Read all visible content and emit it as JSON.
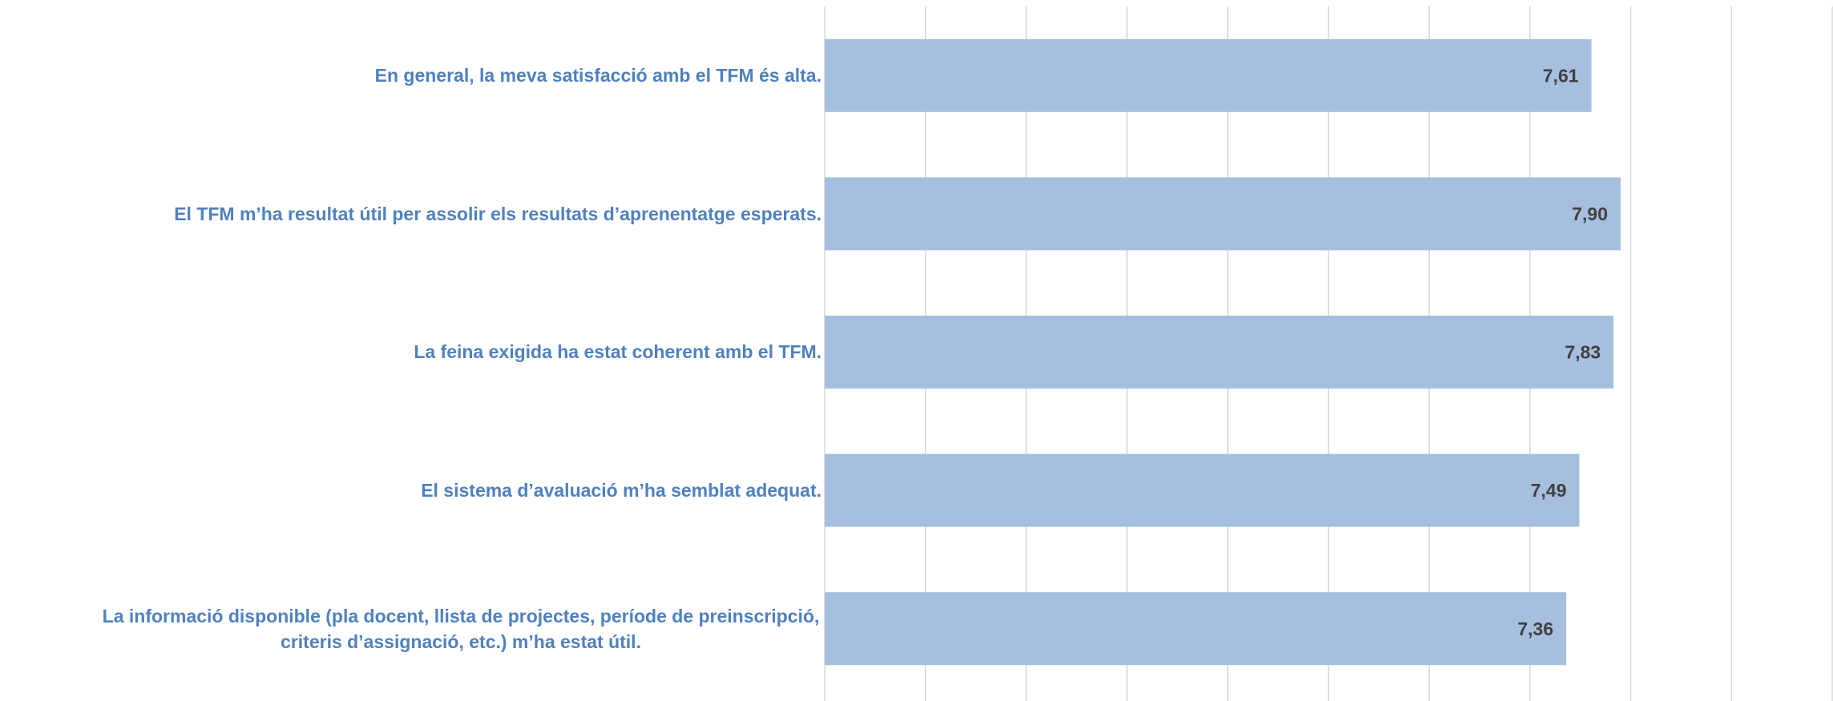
{
  "chart_data": {
    "type": "hbar",
    "categories": [
      "En general, la meva satisfacció amb el TFM és alta.",
      "El TFM m’ha resultat útil per assolir els resultats d’aprenentatge esperats.",
      "La feina exigida ha estat coherent amb el TFM.",
      "El sistema d’avaluació m’ha semblat adequat.",
      "La informació disponible (pla docent, llista de projectes, període de preinscripció, criteris d’assignació, etc.) m’ha estat útil."
    ],
    "values": [
      7.61,
      7.9,
      7.83,
      7.49,
      7.36
    ],
    "value_labels": [
      "7,61",
      "7,90",
      "7,83",
      "7,49",
      "7,36"
    ],
    "color": "#a7bfdf",
    "xlim": [
      0,
      10
    ],
    "xticks": [
      0,
      1,
      2,
      3,
      4,
      5,
      6,
      7,
      8,
      9,
      10
    ],
    "grid": true
  }
}
